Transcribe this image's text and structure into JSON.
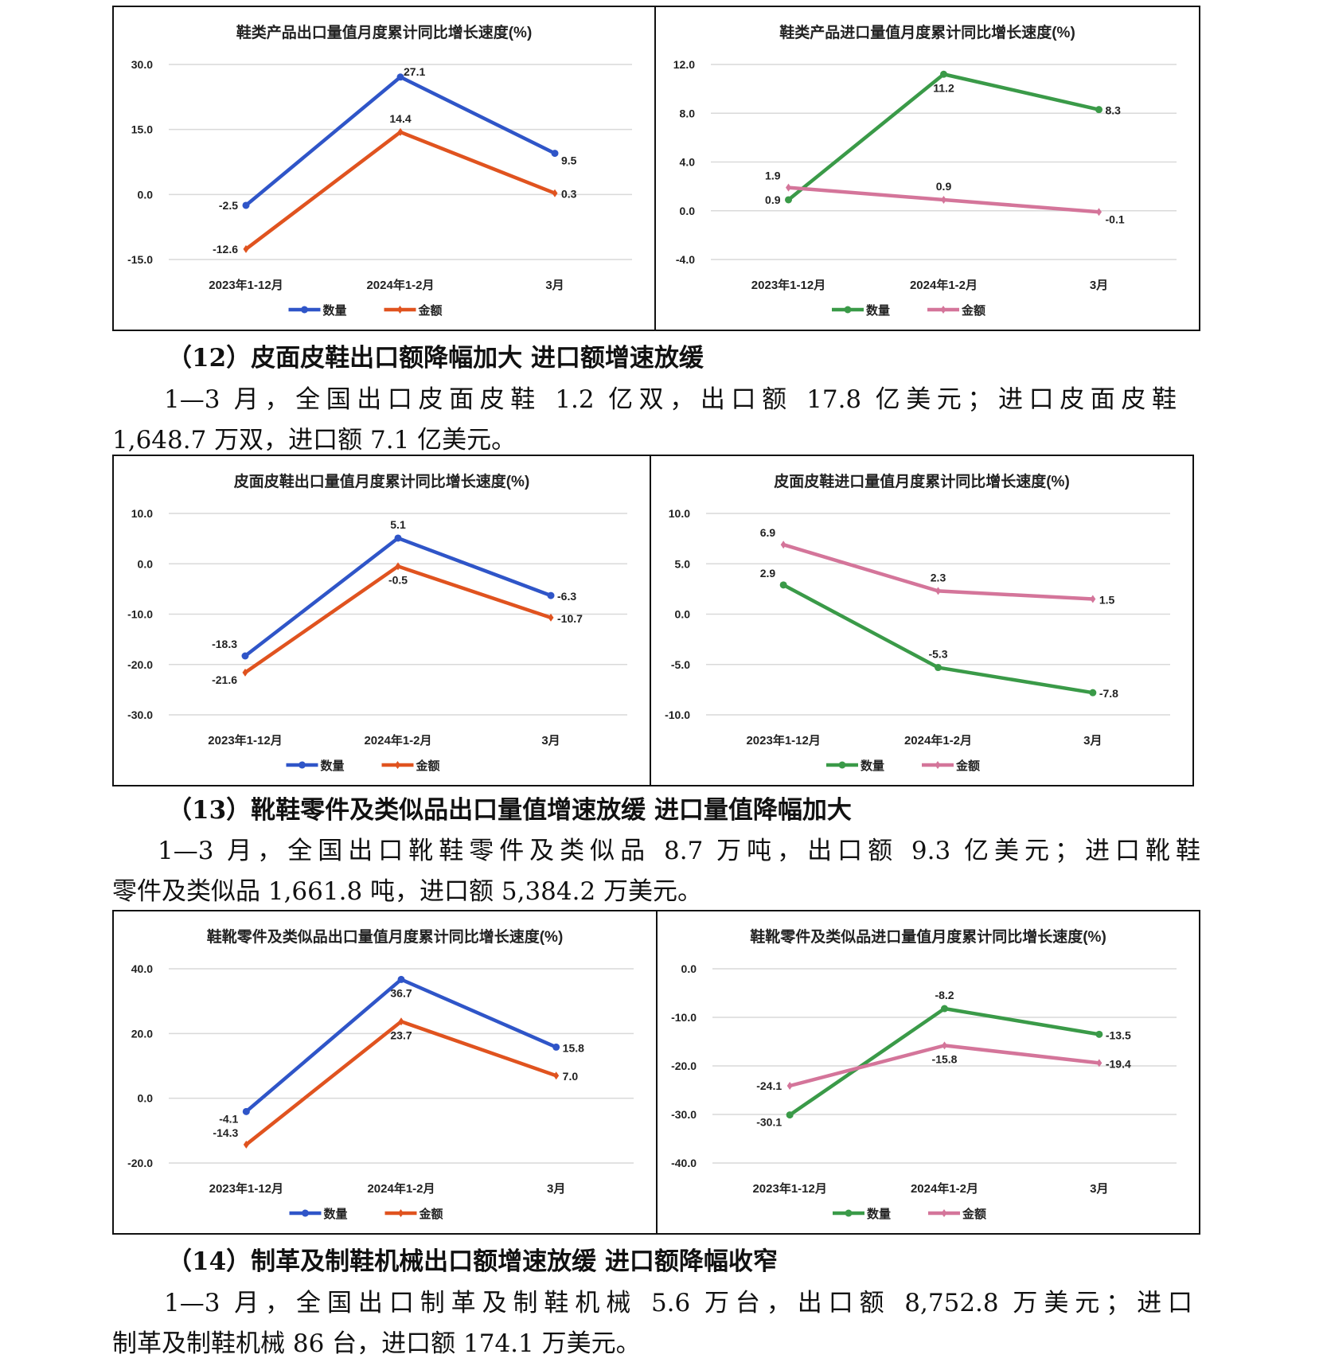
{
  "colors": {
    "blue": "#2f55c8",
    "orange": "#e0531f",
    "green": "#3a9a48",
    "pink": "#d4759a",
    "grid": "#d9d9d9"
  },
  "charts": [
    {
      "title": "鞋类产品出口量值月度累计同比增长速度(%)",
      "type": "line",
      "categories": [
        "2023年1-12月",
        "2024年1-2月",
        "3月"
      ],
      "yticks": [
        30.0,
        15.0,
        0.0,
        -15.0
      ],
      "ylim": [
        -15,
        30
      ],
      "series": [
        {
          "name": "数量",
          "color": "#2f55c8",
          "marker": "circle",
          "values": [
            -2.5,
            27.1,
            9.5
          ]
        },
        {
          "name": "金额",
          "color": "#e0531f",
          "marker": "diamond",
          "values": [
            -12.6,
            14.4,
            0.3
          ]
        }
      ],
      "legend": "bottom"
    },
    {
      "title": "鞋类产品进口量值月度累计同比增长速度(%)",
      "type": "line",
      "categories": [
        "2023年1-12月",
        "2024年1-2月",
        "3月"
      ],
      "yticks": [
        12.0,
        8.0,
        4.0,
        0.0,
        -4.0
      ],
      "ylim": [
        -4,
        12
      ],
      "series": [
        {
          "name": "数量",
          "color": "#3a9a48",
          "marker": "circle",
          "values": [
            0.9,
            11.2,
            8.3
          ]
        },
        {
          "name": "金额",
          "color": "#d4759a",
          "marker": "diamond",
          "values": [
            1.9,
            0.9,
            -0.1
          ]
        }
      ],
      "legend": "bottom"
    },
    {
      "title": "皮面皮鞋出口量值月度累计同比增长速度(%)",
      "type": "line",
      "categories": [
        "2023年1-12月",
        "2024年1-2月",
        "3月"
      ],
      "yticks": [
        10.0,
        0.0,
        -10.0,
        -20.0,
        -30.0
      ],
      "ylim": [
        -30,
        10
      ],
      "series": [
        {
          "name": "数量",
          "color": "#2f55c8",
          "marker": "circle",
          "values": [
            -18.3,
            5.1,
            -6.3
          ]
        },
        {
          "name": "金额",
          "color": "#e0531f",
          "marker": "diamond",
          "values": [
            -21.6,
            -0.5,
            -10.7
          ]
        }
      ],
      "legend": "bottom"
    },
    {
      "title": "皮面皮鞋进口量值月度累计同比增长速度(%)",
      "type": "line",
      "categories": [
        "2023年1-12月",
        "2024年1-2月",
        "3月"
      ],
      "yticks": [
        10.0,
        5.0,
        0.0,
        -5.0,
        -10.0
      ],
      "ylim": [
        -10,
        10
      ],
      "series": [
        {
          "name": "数量",
          "color": "#3a9a48",
          "marker": "circle",
          "values": [
            2.9,
            -5.3,
            -7.8
          ]
        },
        {
          "name": "金额",
          "color": "#d4759a",
          "marker": "diamond",
          "values": [
            6.9,
            2.3,
            1.5
          ]
        }
      ],
      "legend": "bottom"
    },
    {
      "title": "鞋靴零件及类似品出口量值月度累计同比增长速度(%)",
      "type": "line",
      "categories": [
        "2023年1-12月",
        "2024年1-2月",
        "3月"
      ],
      "yticks": [
        40.0,
        20.0,
        0.0,
        -20.0
      ],
      "ylim": [
        -20,
        40
      ],
      "series": [
        {
          "name": "数量",
          "color": "#2f55c8",
          "marker": "circle",
          "values": [
            -4.1,
            36.7,
            15.8
          ]
        },
        {
          "name": "金额",
          "color": "#e0531f",
          "marker": "diamond",
          "values": [
            -14.3,
            23.7,
            7.0
          ]
        }
      ],
      "legend": "bottom"
    },
    {
      "title": "鞋靴零件及类似品进口量值月度累计同比增长速度(%)",
      "type": "line",
      "categories": [
        "2023年1-12月",
        "2024年1-2月",
        "3月"
      ],
      "yticks": [
        0.0,
        -10.0,
        -20.0,
        -30.0,
        -40.0
      ],
      "ylim": [
        -40,
        0
      ],
      "series": [
        {
          "name": "数量",
          "color": "#3a9a48",
          "marker": "circle",
          "values": [
            -30.1,
            -8.2,
            -13.5
          ]
        },
        {
          "name": "金额",
          "color": "#d4759a",
          "marker": "diamond",
          "values": [
            -24.1,
            -15.8,
            -19.4
          ]
        }
      ],
      "legend": "bottom"
    }
  ],
  "sections": [
    {
      "heading": "（12）皮面皮鞋出口额降幅加大  进口额增速放缓",
      "lines": [
        "1—3 月，全国出口皮面皮鞋 1.2 亿双，出口额 17.8 亿美元；进口皮面皮鞋",
        "1,648.7 万双，进口额 7.1 亿美元。"
      ]
    },
    {
      "heading": "（13）靴鞋零件及类似品出口量值增速放缓  进口量值降幅加大",
      "lines": [
        "1—3 月，全国出口靴鞋零件及类似品 8.7 万吨，出口额 9.3 亿美元；进口靴鞋",
        "零件及类似品 1,661.8 吨，进口额 5,384.2 万美元。"
      ]
    },
    {
      "heading": "（14）制革及制鞋机械出口额增速放缓  进口额降幅收窄",
      "lines": [
        "1—3 月，全国出口制革及制鞋机械 5.6 万台，出口额 8,752.8 万美元；进口",
        "制革及制鞋机械 86 台，进口额 174.1 万美元。"
      ]
    }
  ]
}
